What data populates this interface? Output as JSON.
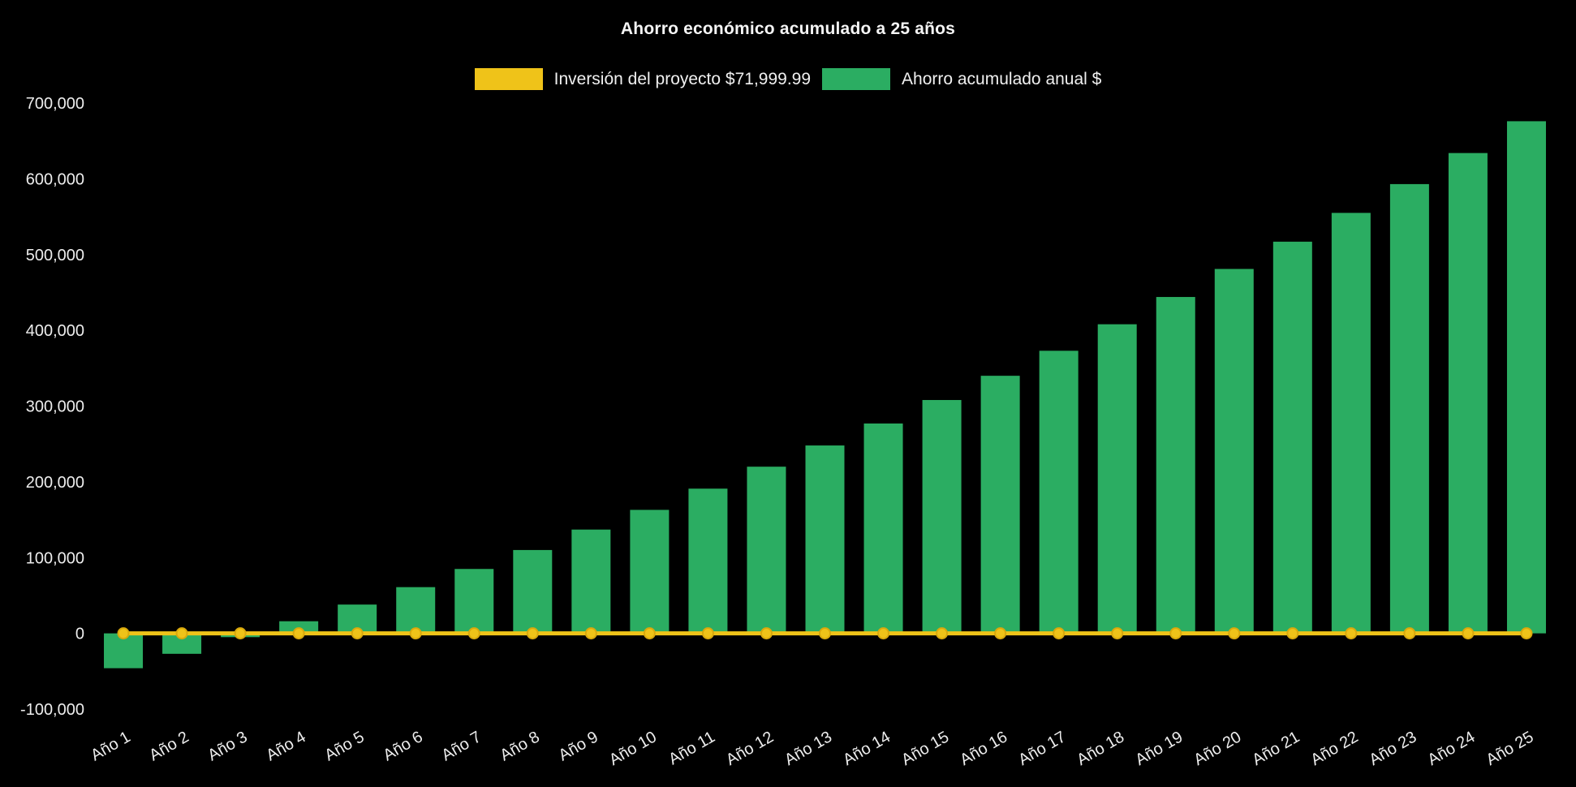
{
  "title": "Ahorro económico acumulado a 25 años",
  "legend": {
    "investment": {
      "label": "Inversión del proyecto $71,999.99",
      "color": "#EFC319"
    },
    "savings": {
      "label": "Ahorro acumulado anual $",
      "color": "#2BAD62"
    }
  },
  "chart_data": {
    "type": "bar",
    "title": "Ahorro económico acumulado a 25 años",
    "categories": [
      "Año 1",
      "Año 2",
      "Año 3",
      "Año 4",
      "Año 5",
      "Año 6",
      "Año 7",
      "Año 8",
      "Año 9",
      "Año 10",
      "Año 11",
      "Año 12",
      "Año 13",
      "Año 14",
      "Año 15",
      "Año 16",
      "Año 17",
      "Año 18",
      "Año 19",
      "Año 20",
      "Año 21",
      "Año 22",
      "Año 23",
      "Año 24",
      "Año 25"
    ],
    "series": [
      {
        "name": "Ahorro acumulado anual $",
        "type": "bar",
        "color": "#2BAD62",
        "values": [
          -46000,
          -27000,
          -5000,
          16000,
          38000,
          61000,
          85000,
          110000,
          137000,
          163000,
          191000,
          220000,
          248000,
          277000,
          308000,
          340000,
          373000,
          408000,
          444000,
          481000,
          517000,
          555000,
          593000,
          634000,
          676000
        ]
      },
      {
        "name": "Inversión del proyecto $71,999.99",
        "type": "line",
        "color": "#EFC319",
        "marker_stroke": "#D9A90C",
        "values": [
          0,
          0,
          0,
          0,
          0,
          0,
          0,
          0,
          0,
          0,
          0,
          0,
          0,
          0,
          0,
          0,
          0,
          0,
          0,
          0,
          0,
          0,
          0,
          0,
          0
        ]
      }
    ],
    "ylim": [
      -100000,
      700000
    ],
    "yticks": [
      {
        "v": -100000,
        "label": "-100,000"
      },
      {
        "v": 0,
        "label": "0"
      },
      {
        "v": 100000,
        "label": "100,000"
      },
      {
        "v": 200000,
        "label": "200,000"
      },
      {
        "v": 300000,
        "label": "300,000"
      },
      {
        "v": 400000,
        "label": "400,000"
      },
      {
        "v": 500000,
        "label": "500,000"
      },
      {
        "v": 600000,
        "label": "600,000"
      },
      {
        "v": 700000,
        "label": "700,000"
      }
    ],
    "grid": false,
    "legend_position": "top",
    "background": "#000000",
    "text_color": "#ededed",
    "xlabel": "",
    "ylabel": ""
  }
}
